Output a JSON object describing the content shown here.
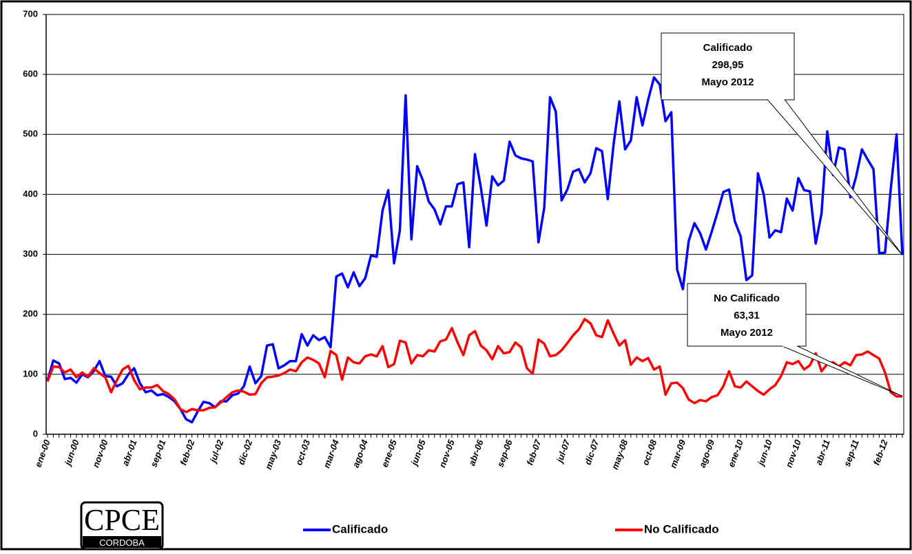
{
  "chart_data": {
    "type": "line",
    "categories": [
      "ene-00",
      null,
      null,
      null,
      null,
      "jun-00",
      null,
      null,
      null,
      null,
      "nov-00",
      null,
      null,
      null,
      null,
      "abr-01",
      null,
      null,
      null,
      null,
      "sep-01",
      null,
      null,
      null,
      null,
      "feb-02",
      null,
      null,
      null,
      null,
      "jul-02",
      null,
      null,
      null,
      null,
      "dic-02",
      null,
      null,
      null,
      null,
      "may-03",
      null,
      null,
      null,
      null,
      "oct-03",
      null,
      null,
      null,
      null,
      "mar-04",
      null,
      null,
      null,
      null,
      "ago-04",
      null,
      null,
      null,
      null,
      "ene-05",
      null,
      null,
      null,
      null,
      "jun-05",
      null,
      null,
      null,
      null,
      "nov-05",
      null,
      null,
      null,
      null,
      "abr-06",
      null,
      null,
      null,
      null,
      "sep-06",
      null,
      null,
      null,
      null,
      "feb-07",
      null,
      null,
      null,
      null,
      "jul-07",
      null,
      null,
      null,
      null,
      "dic-07",
      null,
      null,
      null,
      null,
      "may-08",
      null,
      null,
      null,
      null,
      "oct-08",
      null,
      null,
      null,
      null,
      "mar-09",
      null,
      null,
      null,
      null,
      "ago-09",
      null,
      null,
      null,
      null,
      "ene-10",
      null,
      null,
      null,
      null,
      "jun-10",
      null,
      null,
      null,
      null,
      "nov-10",
      null,
      null,
      null,
      null,
      "abr-11",
      null,
      null,
      null,
      null,
      "sep-11",
      null,
      null,
      null,
      null,
      "feb-12",
      null,
      null,
      null
    ],
    "series": [
      {
        "name": "Calificado",
        "color": "#0000ff",
        "values": [
          90,
          123,
          118,
          92,
          94,
          86,
          100,
          95,
          105,
          122,
          97,
          96,
          80,
          85,
          100,
          110,
          85,
          70,
          73,
          65,
          67,
          62,
          55,
          42,
          25,
          20,
          38,
          54,
          52,
          45,
          55,
          55,
          65,
          68,
          80,
          113,
          85,
          97,
          148,
          150,
          110,
          115,
          122,
          122,
          167,
          148,
          165,
          157,
          162,
          145,
          263,
          268,
          245,
          270,
          247,
          260,
          298,
          296,
          373,
          407,
          285,
          340,
          565,
          325,
          447,
          423,
          388,
          375,
          350,
          380,
          380,
          417,
          420,
          312,
          467,
          413,
          348,
          430,
          415,
          423,
          488,
          465,
          460,
          458,
          455,
          320,
          378,
          562,
          538,
          390,
          408,
          438,
          442,
          420,
          435,
          477,
          472,
          392,
          483,
          555,
          475,
          490,
          562,
          515,
          558,
          595,
          583,
          522,
          537,
          275,
          242,
          322,
          352,
          335,
          308,
          338,
          370,
          404,
          408,
          355,
          330,
          257,
          265,
          435,
          400,
          328,
          340,
          337,
          393,
          373,
          427,
          407,
          405,
          318,
          368,
          505,
          432,
          478,
          475,
          395,
          430,
          475,
          458,
          442,
          302,
          303,
          410,
          500,
          298.95
        ]
      },
      {
        "name": "No Calificado",
        "color": "#ff0000",
        "values": [
          88,
          113,
          112,
          103,
          108,
          95,
          103,
          96,
          110,
          102,
          95,
          70,
          90,
          108,
          114,
          90,
          75,
          78,
          78,
          82,
          72,
          67,
          58,
          42,
          37,
          42,
          40,
          40,
          44,
          45,
          53,
          62,
          70,
          73,
          71,
          66,
          67,
          85,
          95,
          96,
          98,
          102,
          108,
          105,
          120,
          128,
          124,
          118,
          95,
          139,
          132,
          91,
          128,
          120,
          118,
          130,
          133,
          130,
          147,
          112,
          117,
          156,
          153,
          118,
          132,
          130,
          140,
          138,
          155,
          158,
          177,
          153,
          132,
          165,
          172,
          148,
          140,
          125,
          147,
          135,
          137,
          153,
          145,
          110,
          101,
          158,
          151,
          130,
          132,
          140,
          152,
          165,
          175,
          192,
          185,
          165,
          162,
          190,
          168,
          148,
          157,
          116,
          128,
          122,
          127,
          108,
          113,
          66,
          85,
          86,
          77,
          58,
          52,
          57,
          55,
          62,
          65,
          80,
          105,
          80,
          78,
          88,
          80,
          72,
          66,
          75,
          82,
          97,
          120,
          117,
          122,
          108,
          115,
          135,
          105,
          117,
          120,
          113,
          120,
          115,
          132,
          133,
          138,
          132,
          126,
          103,
          70,
          63,
          63.31
        ]
      }
    ],
    "ylim": [
      0,
      700
    ],
    "yticks": [
      0,
      100,
      200,
      300,
      400,
      500,
      600,
      700
    ],
    "grid": true,
    "annotations": [
      {
        "lines": [
          "Calificado",
          "298,95",
          "Mayo 2012"
        ]
      },
      {
        "lines": [
          "No Calificado",
          "63,31",
          "Mayo 2012"
        ]
      }
    ],
    "logo": {
      "text": "CPCE",
      "subtext": "CORDOBA"
    }
  }
}
